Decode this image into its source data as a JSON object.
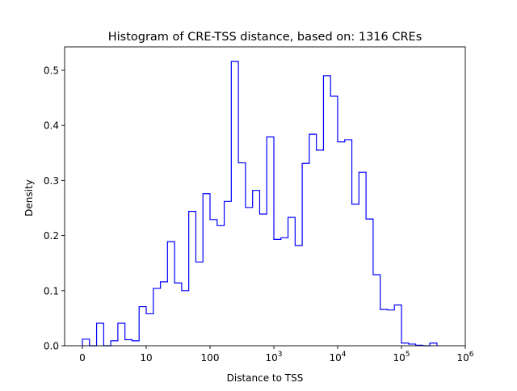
{
  "chart_data": {
    "type": "histogram",
    "title": "Histogram of CRE-TSS distance, based on: 1316 CREs",
    "xlabel": "Distance to TSS",
    "ylabel": "Density",
    "xscale": "symlog",
    "linthresh": 10,
    "bins_per_decade": 9,
    "x_ticks": [
      {
        "value": 0,
        "label": "0",
        "sup": ""
      },
      {
        "value": 10,
        "label": "10",
        "sup": ""
      },
      {
        "value": 100,
        "label": "100",
        "sup": ""
      },
      {
        "value": 1000,
        "label": "10",
        "sup": "3"
      },
      {
        "value": 10000,
        "label": "10",
        "sup": "4"
      },
      {
        "value": 100000,
        "label": "10",
        "sup": "5"
      },
      {
        "value": 1000000,
        "label": "10",
        "sup": "6"
      }
    ],
    "y_ticks": [
      "0.0",
      "0.1",
      "0.2",
      "0.3",
      "0.4",
      "0.5"
    ],
    "ylim": [
      0,
      0.54
    ],
    "color": "#0000ff",
    "density": [
      0.012,
      0,
      0.041,
      0,
      0.009,
      0.041,
      0.011,
      0.009,
      0.071,
      0.058,
      0.104,
      0.116,
      0.189,
      0.114,
      0.1,
      0.244,
      0.152,
      0.276,
      0.229,
      0.218,
      0.262,
      0.516,
      0.332,
      0.251,
      0.282,
      0.239,
      0.379,
      0.193,
      0.196,
      0.233,
      0.182,
      0.331,
      0.384,
      0.355,
      0.49,
      0.453,
      0.37,
      0.374,
      0.257,
      0.315,
      0.23,
      0.129,
      0.066,
      0.065,
      0.074,
      0.005,
      0.003,
      0.001,
      0.0,
      0.005
    ]
  }
}
